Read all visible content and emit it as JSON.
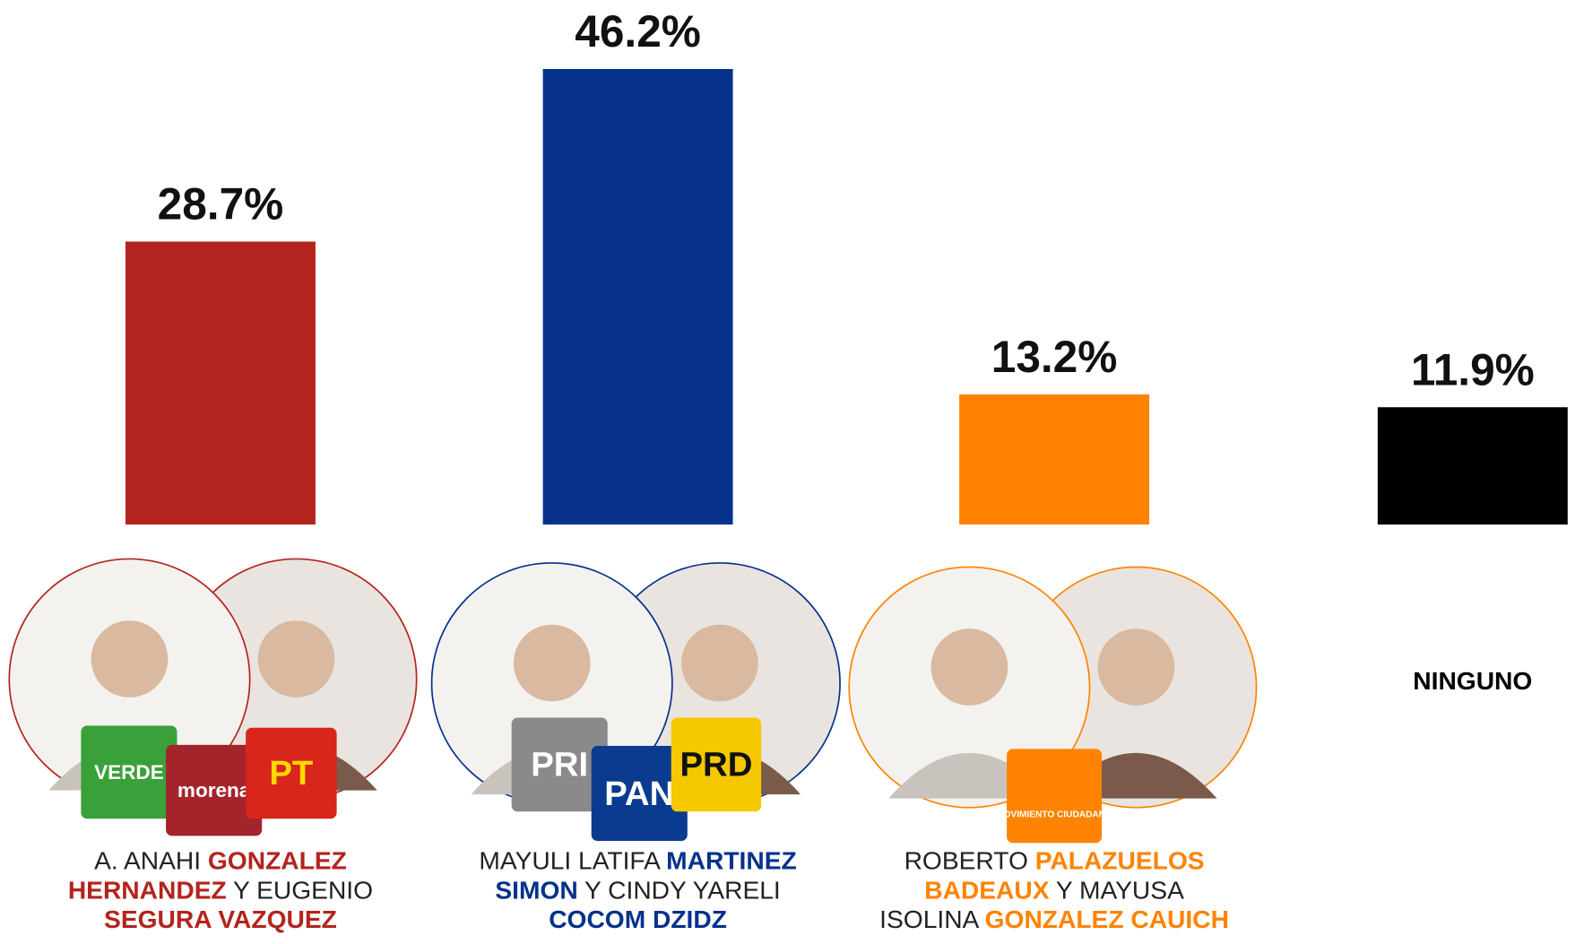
{
  "chart_data": {
    "type": "bar",
    "categories": [
      [
        [
          {
            "text": "A. ANAHI ",
            "accent": false
          },
          {
            "text": "GONZALEZ",
            "accent": true
          }
        ],
        [
          {
            "text": "HERNANDEZ",
            "accent": true
          },
          {
            "text": " Y EUGENIO",
            "accent": false
          }
        ],
        [
          {
            "text": "SEGURA VAZQUEZ",
            "accent": true
          }
        ]
      ],
      [
        [
          {
            "text": "MAYULI LATIFA ",
            "accent": false
          },
          {
            "text": "MARTINEZ",
            "accent": true
          }
        ],
        [
          {
            "text": "SIMON",
            "accent": true
          },
          {
            "text": " Y CINDY YARELI",
            "accent": false
          }
        ],
        [
          {
            "text": "COCOM DZIDZ",
            "accent": true
          }
        ]
      ],
      [
        [
          {
            "text": "ROBERTO ",
            "accent": false
          },
          {
            "text": "PALAZUELOS",
            "accent": true
          }
        ],
        [
          {
            "text": "BADEAUX",
            "accent": true
          },
          {
            "text": " Y MAYUSA",
            "accent": false
          }
        ],
        [
          {
            "text": "ISOLINA ",
            "accent": false
          },
          {
            "text": "GONZALEZ CAUICH",
            "accent": true
          }
        ]
      ],
      [
        [
          {
            "text": "NINGUNO",
            "accent": true
          }
        ]
      ]
    ],
    "values": [
      28.7,
      46.2,
      13.2,
      11.9
    ],
    "value_labels": [
      "28.7%",
      "46.2%",
      "13.2%",
      "11.9%"
    ],
    "colors": [
      "#b3241e",
      "#06318c",
      "#ff8300",
      "#000000"
    ],
    "ylim": [
      0,
      53.2
    ],
    "logos": [
      [
        {
          "text": "VERDE",
          "bg": "#3aa13a",
          "fg": "#ffffff"
        },
        {
          "text": "morena",
          "bg": "#a3242a",
          "fg": "#ffffff"
        },
        {
          "text": "PT",
          "bg": "#d8261c",
          "fg": "#ffd800"
        }
      ],
      [
        {
          "text": "PRI",
          "bg": "#8a8a8a",
          "fg": "#ffffff"
        },
        {
          "text": "PAN",
          "bg": "#0b3b8f",
          "fg": "#ffffff"
        },
        {
          "text": "PRD",
          "bg": "#f5c800",
          "fg": "#111111"
        }
      ],
      [
        {
          "text": "MOVIMIENTO CIUDADANO",
          "bg": "#ff8300",
          "fg": "#ffffff"
        }
      ],
      []
    ]
  }
}
